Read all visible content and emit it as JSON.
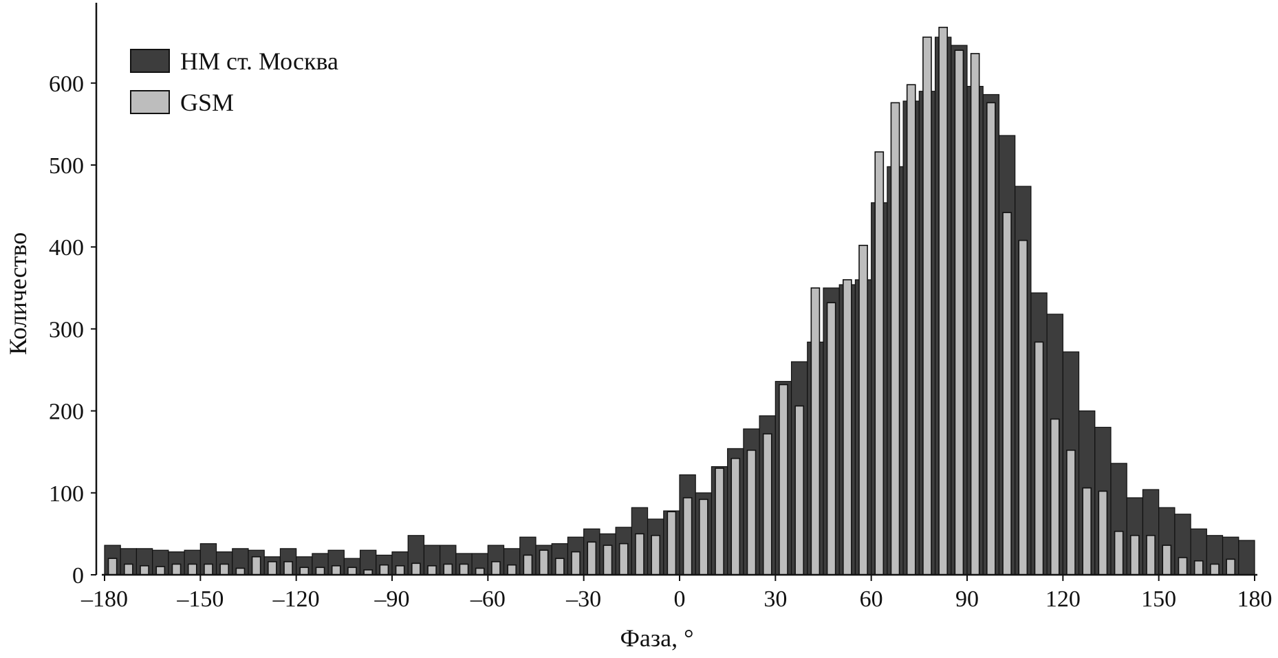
{
  "chart_data": {
    "type": "bar",
    "xlabel": "Фаза, °",
    "ylabel": "Количество",
    "xlim": [
      -180,
      180
    ],
    "ylim": [
      0,
      700
    ],
    "x_ticks": [
      "–180",
      "–150",
      "–120",
      "–90",
      "–60",
      "–30",
      "0",
      "30",
      "60",
      "90",
      "120",
      "150",
      "180"
    ],
    "y_ticks": [
      "0",
      "100",
      "200",
      "300",
      "400",
      "500",
      "600"
    ],
    "legend_position": "top-left",
    "bin_width": 5,
    "bin_centers": [
      -177.5,
      -172.5,
      -167.5,
      -162.5,
      -157.5,
      -152.5,
      -147.5,
      -142.5,
      -137.5,
      -132.5,
      -127.5,
      -122.5,
      -117.5,
      -112.5,
      -107.5,
      -102.5,
      -97.5,
      -92.5,
      -87.5,
      -82.5,
      -77.5,
      -72.5,
      -67.5,
      -62.5,
      -57.5,
      -52.5,
      -47.5,
      -42.5,
      -37.5,
      -32.5,
      -27.5,
      -22.5,
      -17.5,
      -12.5,
      -7.5,
      -2.5,
      2.5,
      7.5,
      12.5,
      17.5,
      22.5,
      27.5,
      32.5,
      37.5,
      42.5,
      47.5,
      52.5,
      57.5,
      62.5,
      67.5,
      72.5,
      77.5,
      82.5,
      87.5,
      92.5,
      97.5,
      102.5,
      107.5,
      112.5,
      117.5,
      122.5,
      127.5,
      132.5,
      137.5,
      142.5,
      147.5,
      152.5,
      157.5,
      162.5,
      167.5,
      172.5,
      177.5
    ],
    "series": [
      {
        "name": "НМ ст. Москва",
        "color": "#3d3d3d",
        "values": [
          36,
          32,
          32,
          30,
          28,
          30,
          38,
          28,
          32,
          30,
          22,
          32,
          22,
          26,
          30,
          20,
          30,
          24,
          28,
          48,
          36,
          36,
          26,
          26,
          36,
          32,
          46,
          36,
          38,
          46,
          56,
          50,
          58,
          82,
          68,
          78,
          122,
          100,
          132,
          154,
          178,
          194,
          236,
          260,
          284,
          350,
          354,
          360,
          454,
          498,
          578,
          590,
          656,
          646,
          596,
          586,
          536,
          474,
          344,
          318,
          272,
          200,
          180,
          136,
          94,
          104,
          82,
          74,
          56,
          48,
          46,
          42
        ]
      },
      {
        "name": "GSM",
        "color": "#bdbdbd",
        "values": [
          20,
          13,
          11,
          10,
          13,
          13,
          13,
          13,
          8,
          22,
          16,
          16,
          9,
          9,
          11,
          9,
          6,
          12,
          11,
          14,
          11,
          13,
          13,
          8,
          16,
          12,
          24,
          30,
          20,
          28,
          40,
          36,
          38,
          50,
          48,
          77,
          94,
          92,
          130,
          142,
          152,
          172,
          232,
          206,
          350,
          332,
          360,
          402,
          516,
          576,
          598,
          656,
          668,
          640,
          636,
          576,
          442,
          408,
          284,
          190,
          152,
          106,
          102,
          53,
          48,
          48,
          36,
          21,
          17,
          13,
          19,
          0
        ]
      }
    ]
  }
}
